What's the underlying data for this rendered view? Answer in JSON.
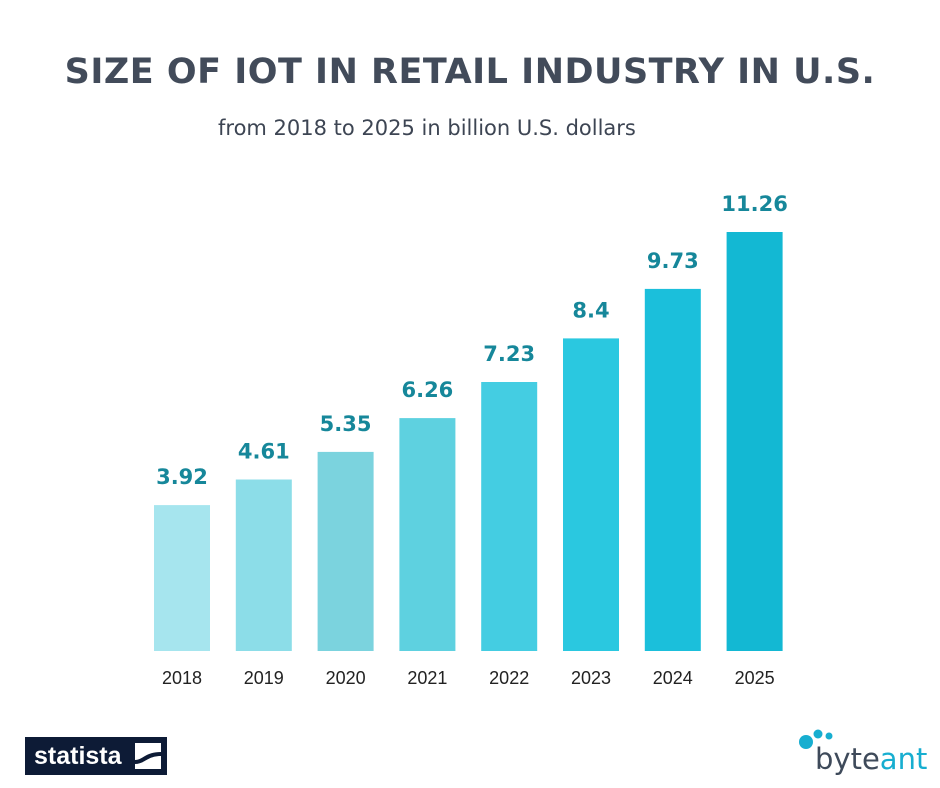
{
  "chart_data": {
    "type": "bar",
    "title": "SIZE OF IOT IN RETAIL INDUSTRY IN U.S.",
    "subtitle": "from 2018 to 2025 in billion U.S. dollars",
    "categories": [
      "2018",
      "2019",
      "2020",
      "2021",
      "2022",
      "2023",
      "2024",
      "2025"
    ],
    "values": [
      3.92,
      4.61,
      5.35,
      6.26,
      7.23,
      8.4,
      9.73,
      11.26
    ],
    "value_labels": [
      "3.92",
      "4.61",
      "5.35",
      "6.26",
      "7.23",
      "8.4",
      "9.73",
      "11.26"
    ],
    "bar_colors": [
      "#a6e5ee",
      "#8cdde8",
      "#7bd3de",
      "#5ed1e0",
      "#44cde2",
      "#2ac8e0",
      "#1bbfdb",
      "#13b8d3"
    ],
    "label_color": "#16879a",
    "xlabel": "",
    "ylabel": "",
    "ylim": [
      0,
      11.26
    ],
    "grid": false
  },
  "logos": {
    "statista": "statista",
    "byteant_prefix": "byte",
    "byteant_suffix": "ant"
  }
}
